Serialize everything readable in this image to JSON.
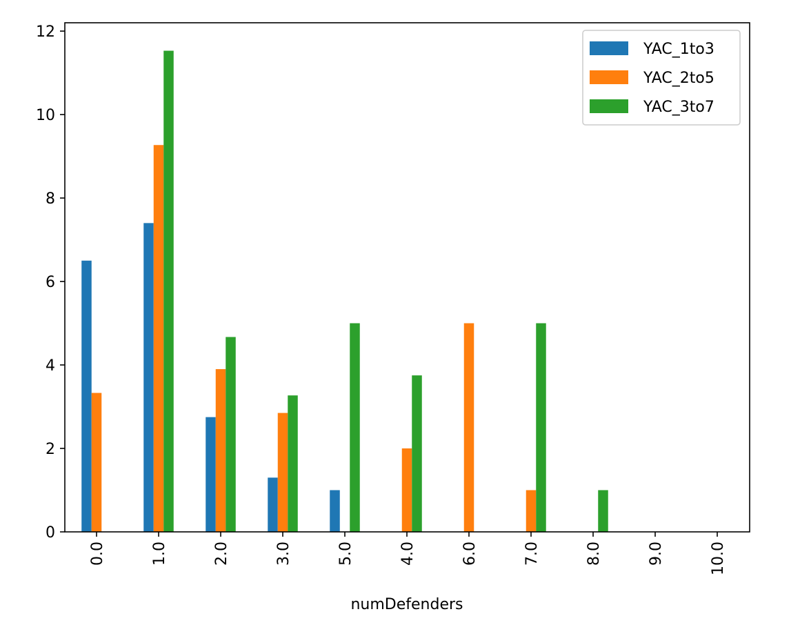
{
  "chart_data": {
    "type": "bar",
    "title": "",
    "xlabel": "numDefenders",
    "ylabel": "",
    "categories": [
      "0.0",
      "1.0",
      "2.0",
      "3.0",
      "5.0",
      "4.0",
      "6.0",
      "7.0",
      "8.0",
      "9.0",
      "10.0"
    ],
    "series": [
      {
        "name": "YAC_1to3",
        "color": "#1f77b4",
        "values": [
          6.5,
          7.4,
          2.75,
          1.3,
          1.0,
          0,
          0,
          0,
          0,
          0,
          0
        ]
      },
      {
        "name": "YAC_2to5",
        "color": "#ff7f0e",
        "values": [
          3.33,
          9.27,
          3.9,
          2.85,
          0,
          2.0,
          5.0,
          1.0,
          0,
          0,
          0
        ]
      },
      {
        "name": "YAC_3to7",
        "color": "#2ca02c",
        "values": [
          0,
          11.53,
          4.67,
          3.27,
          5.0,
          3.75,
          0,
          5.0,
          1.0,
          0,
          0
        ]
      }
    ],
    "ylim": [
      0,
      12.2
    ],
    "yticks": [
      0,
      2,
      4,
      6,
      8,
      10,
      12
    ],
    "legend_position": "top-right",
    "grid": false,
    "xtick_rotation": 90
  }
}
